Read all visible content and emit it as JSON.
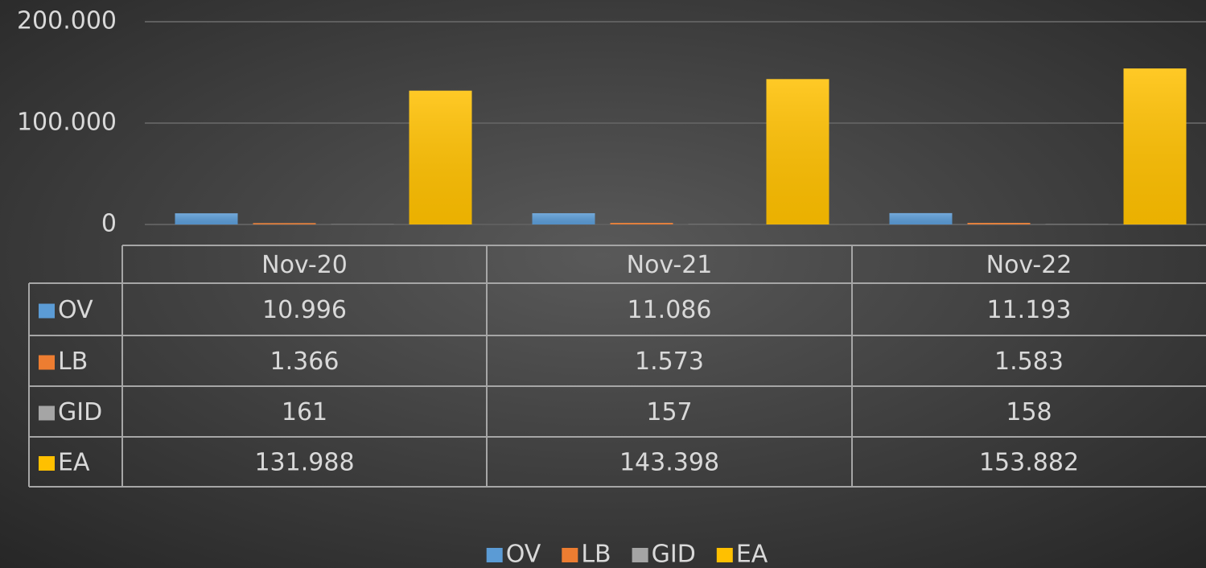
{
  "chart_data": {
    "type": "bar",
    "categories": [
      "Nov-20",
      "Nov-21",
      "Nov-22"
    ],
    "series": [
      {
        "name": "OV",
        "color": "#5b9bd5",
        "values": [
          10996,
          11086,
          11193
        ],
        "value_labels": [
          "10.996",
          "11.086",
          "11.193"
        ]
      },
      {
        "name": "LB",
        "color": "#ed7d31",
        "values": [
          1366,
          1573,
          1583
        ],
        "value_labels": [
          "1.366",
          "1.573",
          "1.583"
        ]
      },
      {
        "name": "GID",
        "color": "#a5a5a5",
        "values": [
          161,
          157,
          158
        ],
        "value_labels": [
          "161",
          "157",
          "158"
        ]
      },
      {
        "name": "EA",
        "color": "#ffc000",
        "values": [
          131988,
          143398,
          153882
        ],
        "value_labels": [
          "131.988",
          "143.398",
          "153.882"
        ]
      }
    ],
    "ylim": [
      0,
      200000
    ],
    "yticks": [
      0,
      {
        "value": 100000,
        "label": "100.000"
      },
      {
        "value": 200000,
        "label": "200.000"
      }
    ],
    "grid": true,
    "data_table": true,
    "legend": "bottom"
  }
}
